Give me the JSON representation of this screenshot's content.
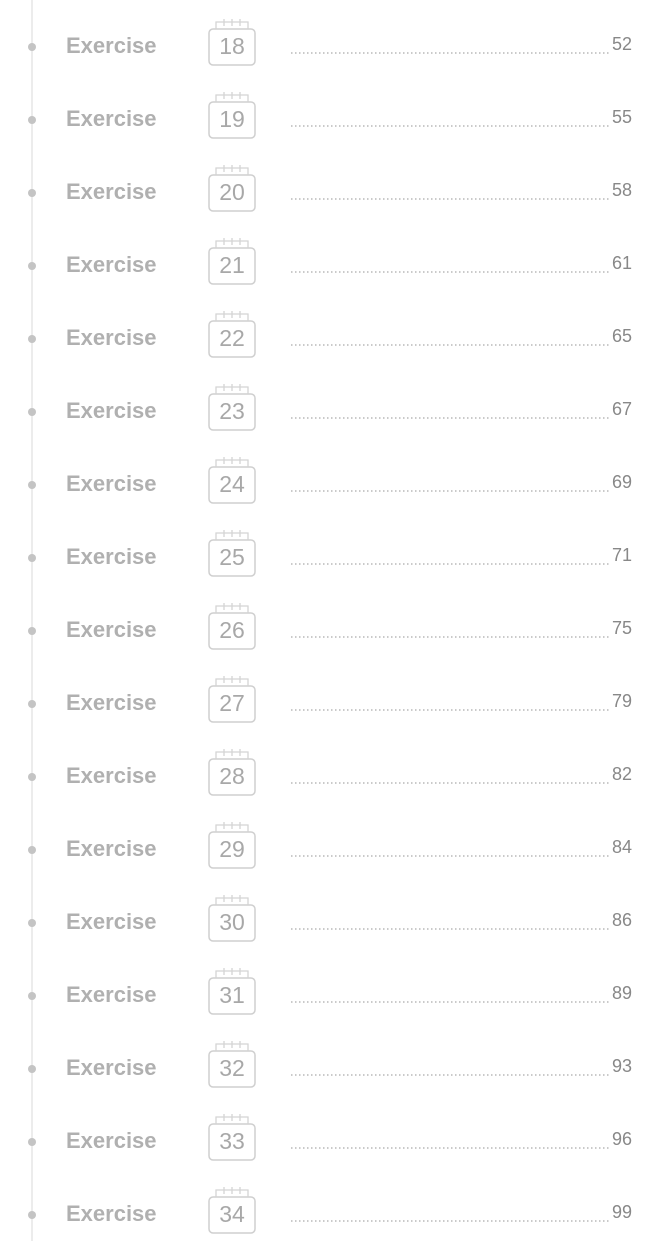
{
  "entries": [
    {
      "label": "Exercise",
      "number": 18,
      "page": 52
    },
    {
      "label": "Exercise",
      "number": 19,
      "page": 55
    },
    {
      "label": "Exercise",
      "number": 20,
      "page": 58
    },
    {
      "label": "Exercise",
      "number": 21,
      "page": 61
    },
    {
      "label": "Exercise",
      "number": 22,
      "page": 65
    },
    {
      "label": "Exercise",
      "number": 23,
      "page": 67
    },
    {
      "label": "Exercise",
      "number": 24,
      "page": 69
    },
    {
      "label": "Exercise",
      "number": 25,
      "page": 71
    },
    {
      "label": "Exercise",
      "number": 26,
      "page": 75
    },
    {
      "label": "Exercise",
      "number": 27,
      "page": 79
    },
    {
      "label": "Exercise",
      "number": 28,
      "page": 82
    },
    {
      "label": "Exercise",
      "number": 29,
      "page": 84
    },
    {
      "label": "Exercise",
      "number": 30,
      "page": 86
    },
    {
      "label": "Exercise",
      "number": 31,
      "page": 89
    },
    {
      "label": "Exercise",
      "number": 32,
      "page": 93
    },
    {
      "label": "Exercise",
      "number": 33,
      "page": 96
    },
    {
      "label": "Exercise",
      "number": 34,
      "page": 99
    }
  ]
}
